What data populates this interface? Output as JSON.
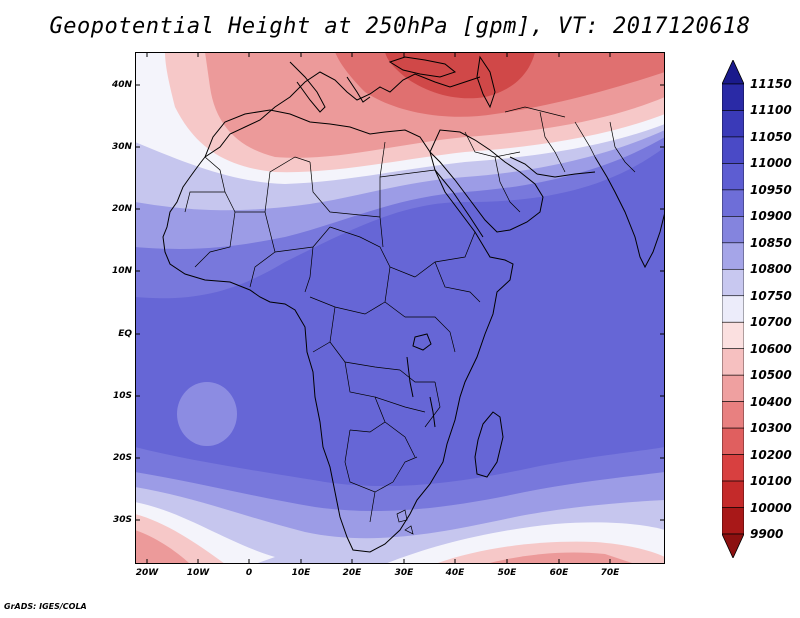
{
  "title": "Geopotential Height at 250hPa [gpm], VT: 2017120618",
  "credit": "GrADS: IGES/COLA",
  "map": {
    "lat_labels": [
      "40N",
      "30N",
      "20N",
      "10N",
      "EQ",
      "10S",
      "20S",
      "30S"
    ],
    "lon_labels": [
      "20W",
      "10W",
      "0",
      "10E",
      "20E",
      "30E",
      "40E",
      "50E",
      "60E",
      "70E"
    ]
  },
  "colorbar": {
    "levels": [
      "11150",
      "11100",
      "11050",
      "11000",
      "10950",
      "10900",
      "10850",
      "10800",
      "10750",
      "10700",
      "10600",
      "10500",
      "10400",
      "10300",
      "10200",
      "10100",
      "10000",
      "9900"
    ],
    "colors": [
      "#1a1a8c",
      "#2a2aa6",
      "#3a3ab8",
      "#4a4ac6",
      "#5d5dd2",
      "#6e6ed8",
      "#8484de",
      "#a5a5e8",
      "#c8c8f0",
      "#ececfa",
      "#fbe0e0",
      "#f6c0c0",
      "#efa0a0",
      "#e88080",
      "#e05f5f",
      "#d84040",
      "#c42a2a",
      "#a81818",
      "#8c1010"
    ]
  },
  "field_colors": {
    "deep_blue": "#6666d6",
    "mid_blue": "#7878dc",
    "light_blue": "#9c9ce6",
    "pale_blue": "#c6c6ee",
    "white": "#f4f4fb",
    "pale_red": "#f6c8c8",
    "mid_red": "#ec9a9a",
    "red": "#e07070",
    "deep_red": "#d04848"
  }
}
